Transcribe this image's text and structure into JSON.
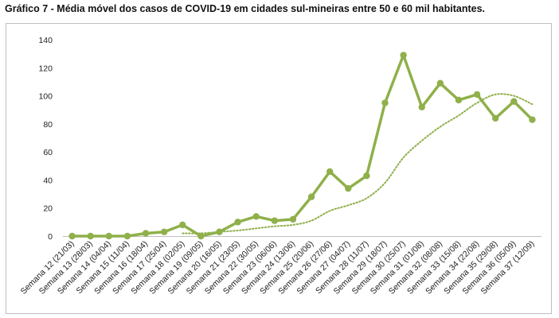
{
  "title": "Gráfico 7 - Média móvel dos casos de COVID-19 em cidades sul-mineiras entre 50 e 60 mil habitantes.",
  "chart_data": {
    "type": "line",
    "title": "Gráfico 7 - Média móvel dos casos de COVID-19 em cidades sul-mineiras entre 50 e 60 mil habitantes.",
    "xlabel": "",
    "ylabel": "",
    "ylim": [
      0,
      140
    ],
    "yticks": [
      0,
      20,
      40,
      60,
      80,
      100,
      120,
      140
    ],
    "grid": false,
    "legend": "none",
    "categories": [
      "Semana 12 (21/03)",
      "Semana 13 (28/03)",
      "Semana 14 (04/04)",
      "Semana 15 (11/04)",
      "Semana 16 (18/04)",
      "Semana 17 (25/04)",
      "Semana 18 (02/05)",
      "Semana 19 (09/05)",
      "Semana 20 (16/05)",
      "Semana 21 (23/05)",
      "Semana 22 (30/05)",
      "Semana 23 (06/06)",
      "Semana 24 (13/06)",
      "Semana 25 (20/06)",
      "Semana 26 (27/06)",
      "Semana 27 (04/07)",
      "Semana 28 (11/07)",
      "Semana 29 (18/07)",
      "Semana 30 (25/07)",
      "Semana 31 (01/08)",
      "Semana 32 (08/08)",
      "Semana 33 (15/08)",
      "Semana 34 (22/08)",
      "Semana 35 (29/08)",
      "Semana 36 (05/09)",
      "Semana 37 (12/09)"
    ],
    "series": [
      {
        "style": "solid-markers",
        "color": "#8fb04a",
        "values": [
          0,
          0,
          0,
          0,
          2,
          3,
          8,
          0,
          3,
          10,
          14,
          11,
          12,
          28,
          46,
          34,
          43,
          95,
          129,
          92,
          109,
          97,
          101,
          84,
          96,
          83
        ]
      },
      {
        "style": "dotted-trendline",
        "color": "#8fb04a",
        "values": [
          null,
          null,
          null,
          null,
          null,
          null,
          2,
          2,
          3,
          4,
          5.5,
          7,
          8,
          11,
          18,
          22,
          27,
          38,
          56,
          68,
          78,
          86,
          95,
          101,
          100,
          94
        ]
      }
    ]
  }
}
